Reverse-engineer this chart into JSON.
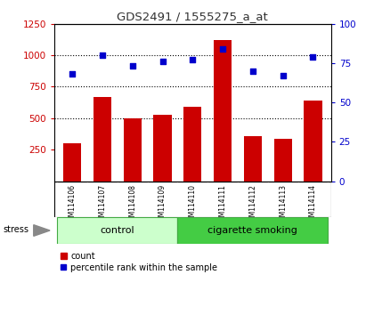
{
  "title": "GDS2491 / 1555275_a_at",
  "samples": [
    "GSM114106",
    "GSM114107",
    "GSM114108",
    "GSM114109",
    "GSM114110",
    "GSM114111",
    "GSM114112",
    "GSM114113",
    "GSM114114"
  ],
  "counts": [
    300,
    670,
    495,
    525,
    590,
    1120,
    360,
    335,
    640
  ],
  "percentile_ranks": [
    68,
    80,
    73,
    76,
    77,
    84,
    70,
    67,
    79
  ],
  "ylim_left": [
    0,
    1250
  ],
  "ylim_right": [
    0,
    100
  ],
  "yticks_left": [
    250,
    500,
    750,
    1000,
    1250
  ],
  "yticks_right": [
    0,
    25,
    50,
    75,
    100
  ],
  "bar_color": "#cc0000",
  "dot_color": "#0000cc",
  "groups": [
    {
      "label": "control",
      "indices": [
        0,
        1,
        2,
        3
      ],
      "color": "#ccffcc",
      "edge": "#44aa44"
    },
    {
      "label": "cigarette smoking",
      "indices": [
        4,
        5,
        6,
        7,
        8
      ],
      "color": "#44cc44",
      "edge": "#44aa44"
    }
  ],
  "stress_label": "stress",
  "legend_bar_label": "count",
  "legend_dot_label": "percentile rank within the sample",
  "xlabel_color": "#cc0000",
  "ylabel_right_color": "#0000cc",
  "title_color": "#333333",
  "bg_color": "#ffffff",
  "tick_area_color": "#bbbbbb",
  "gridlines_at": [
    500,
    750,
    1000
  ],
  "bar_width": 0.6
}
